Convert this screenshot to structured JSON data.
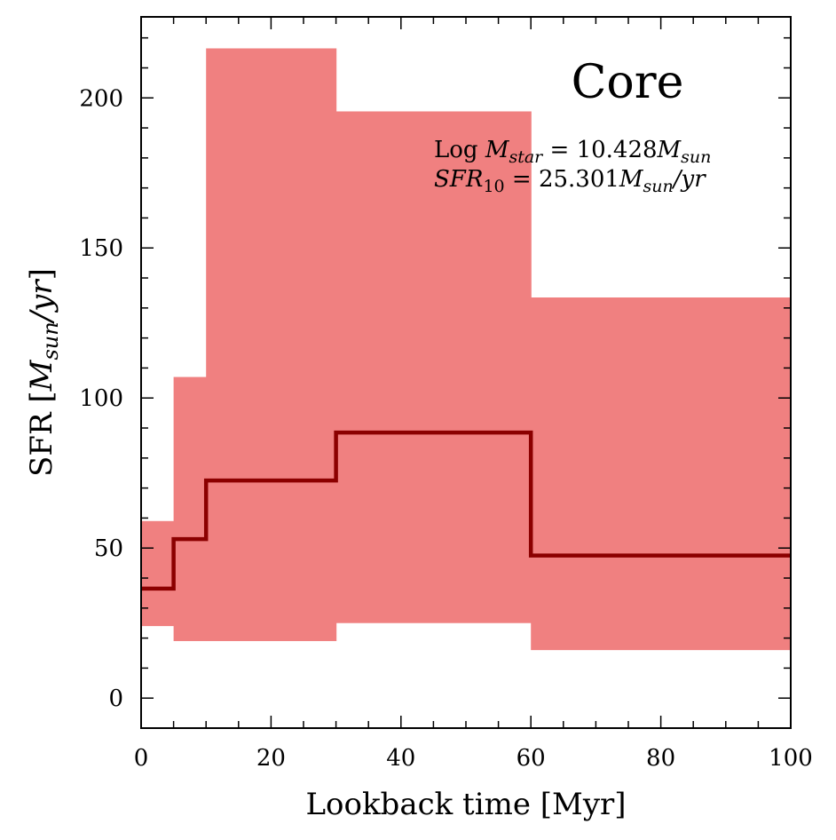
{
  "chart_data": {
    "type": "line",
    "title": "Core",
    "xlabel": "Lookback time [Myr]",
    "ylabel": {
      "prefix": "SFR [",
      "var": "M",
      "sub": "sun",
      "mid": "/",
      "var2": "yr",
      "suffix": "]"
    },
    "xlim": [
      0,
      100
    ],
    "ylim": [
      -10,
      227
    ],
    "xticks": [
      0,
      20,
      40,
      60,
      80,
      100
    ],
    "yticks": [
      0,
      50,
      100,
      150,
      200
    ],
    "grid": false,
    "colors": {
      "line": "#8b0000",
      "band": "#f08080"
    },
    "series": [
      {
        "bins": [
          {
            "x0": 0,
            "x1": 5,
            "median": 36.5,
            "lower": 24,
            "upper": 59
          },
          {
            "x0": 5,
            "x1": 10,
            "median": 53,
            "lower": 19,
            "upper": 107
          },
          {
            "x0": 10,
            "x1": 30,
            "median": 72.5,
            "lower": 19,
            "upper": 216.5
          },
          {
            "x0": 30,
            "x1": 60,
            "median": 88.5,
            "lower": 25,
            "upper": 195.5
          },
          {
            "x0": 60,
            "x1": 100,
            "median": 47.5,
            "lower": 16,
            "upper": 133.5
          }
        ]
      }
    ],
    "annotations": {
      "mstar": {
        "prefix": "Log ",
        "var": "M",
        "sub": "star",
        "eq": " = 10.428",
        "unit_var": "M",
        "unit_sub": "sun",
        "unit_tail": ""
      },
      "sfr10": {
        "var": "SFR",
        "sub": "10",
        "eq": " = 25.301",
        "unit_var": "M",
        "unit_sub": "sun",
        "unit_tail": "/yr"
      }
    }
  }
}
